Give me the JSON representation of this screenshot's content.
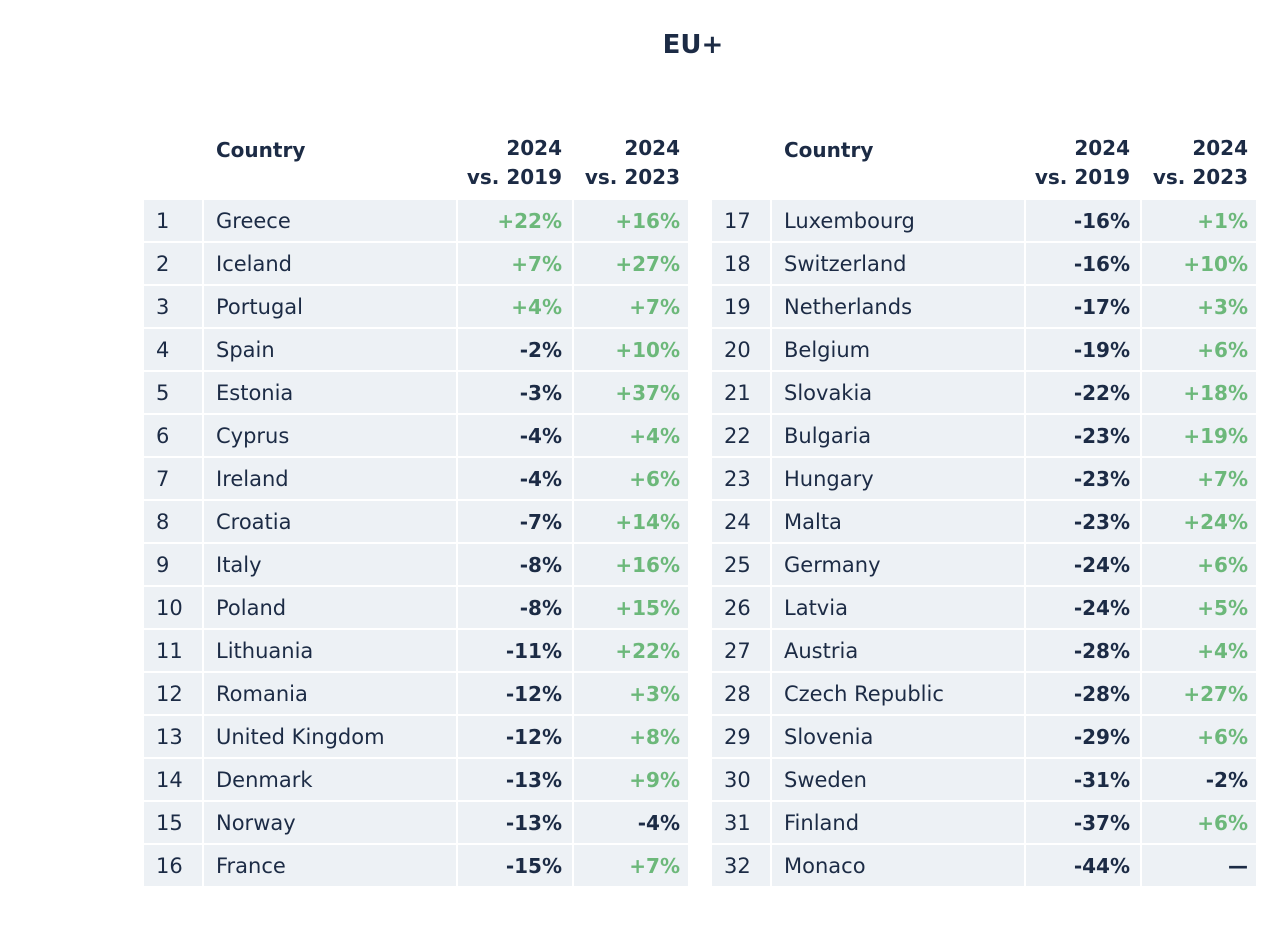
{
  "title": "EU+",
  "header": {
    "country": "Country",
    "col1_line1": "2024",
    "col1_line2": "vs. 2019",
    "col2_line1": "2024",
    "col2_line2": "vs. 2023"
  },
  "colors": {
    "positive": "#6cb87a",
    "negative": "#1c2b45",
    "row_background": "#edf1f5"
  },
  "left_rows": [
    {
      "rank": "1",
      "country": "Greece",
      "v2019": "+22%",
      "v2023": "+16%"
    },
    {
      "rank": "2",
      "country": "Iceland",
      "v2019": "+7%",
      "v2023": "+27%"
    },
    {
      "rank": "3",
      "country": "Portugal",
      "v2019": "+4%",
      "v2023": "+7%"
    },
    {
      "rank": "4",
      "country": "Spain",
      "v2019": "-2%",
      "v2023": "+10%"
    },
    {
      "rank": "5",
      "country": "Estonia",
      "v2019": "-3%",
      "v2023": "+37%"
    },
    {
      "rank": "6",
      "country": "Cyprus",
      "v2019": "-4%",
      "v2023": "+4%"
    },
    {
      "rank": "7",
      "country": "Ireland",
      "v2019": "-4%",
      "v2023": "+6%"
    },
    {
      "rank": "8",
      "country": "Croatia",
      "v2019": "-7%",
      "v2023": "+14%"
    },
    {
      "rank": "9",
      "country": "Italy",
      "v2019": "-8%",
      "v2023": "+16%"
    },
    {
      "rank": "10",
      "country": "Poland",
      "v2019": "-8%",
      "v2023": "+15%"
    },
    {
      "rank": "11",
      "country": "Lithuania",
      "v2019": "-11%",
      "v2023": "+22%"
    },
    {
      "rank": "12",
      "country": "Romania",
      "v2019": "-12%",
      "v2023": "+3%"
    },
    {
      "rank": "13",
      "country": "United Kingdom",
      "v2019": "-12%",
      "v2023": "+8%"
    },
    {
      "rank": "14",
      "country": "Denmark",
      "v2019": "-13%",
      "v2023": "+9%"
    },
    {
      "rank": "15",
      "country": "Norway",
      "v2019": "-13%",
      "v2023": "-4%"
    },
    {
      "rank": "16",
      "country": "France",
      "v2019": "-15%",
      "v2023": "+7%"
    }
  ],
  "right_rows": [
    {
      "rank": "17",
      "country": "Luxembourg",
      "v2019": "-16%",
      "v2023": "+1%"
    },
    {
      "rank": "18",
      "country": "Switzerland",
      "v2019": "-16%",
      "v2023": "+10%"
    },
    {
      "rank": "19",
      "country": "Netherlands",
      "v2019": "-17%",
      "v2023": "+3%"
    },
    {
      "rank": "20",
      "country": "Belgium",
      "v2019": "-19%",
      "v2023": "+6%"
    },
    {
      "rank": "21",
      "country": "Slovakia",
      "v2019": "-22%",
      "v2023": "+18%"
    },
    {
      "rank": "22",
      "country": "Bulgaria",
      "v2019": "-23%",
      "v2023": "+19%"
    },
    {
      "rank": "23",
      "country": "Hungary",
      "v2019": "-23%",
      "v2023": "+7%"
    },
    {
      "rank": "24",
      "country": "Malta",
      "v2019": "-23%",
      "v2023": "+24%"
    },
    {
      "rank": "25",
      "country": "Germany",
      "v2019": "-24%",
      "v2023": "+6%"
    },
    {
      "rank": "26",
      "country": "Latvia",
      "v2019": "-24%",
      "v2023": "+5%"
    },
    {
      "rank": "27",
      "country": "Austria",
      "v2019": "-28%",
      "v2023": "+4%"
    },
    {
      "rank": "28",
      "country": "Czech Republic",
      "v2019": "-28%",
      "v2023": "+27%"
    },
    {
      "rank": "29",
      "country": "Slovenia",
      "v2019": "-29%",
      "v2023": "+6%"
    },
    {
      "rank": "30",
      "country": "Sweden",
      "v2019": "-31%",
      "v2023": "-2%"
    },
    {
      "rank": "31",
      "country": "Finland",
      "v2019": "-37%",
      "v2023": "+6%"
    },
    {
      "rank": "32",
      "country": "Monaco",
      "v2019": "-44%",
      "v2023": "—"
    }
  ]
}
